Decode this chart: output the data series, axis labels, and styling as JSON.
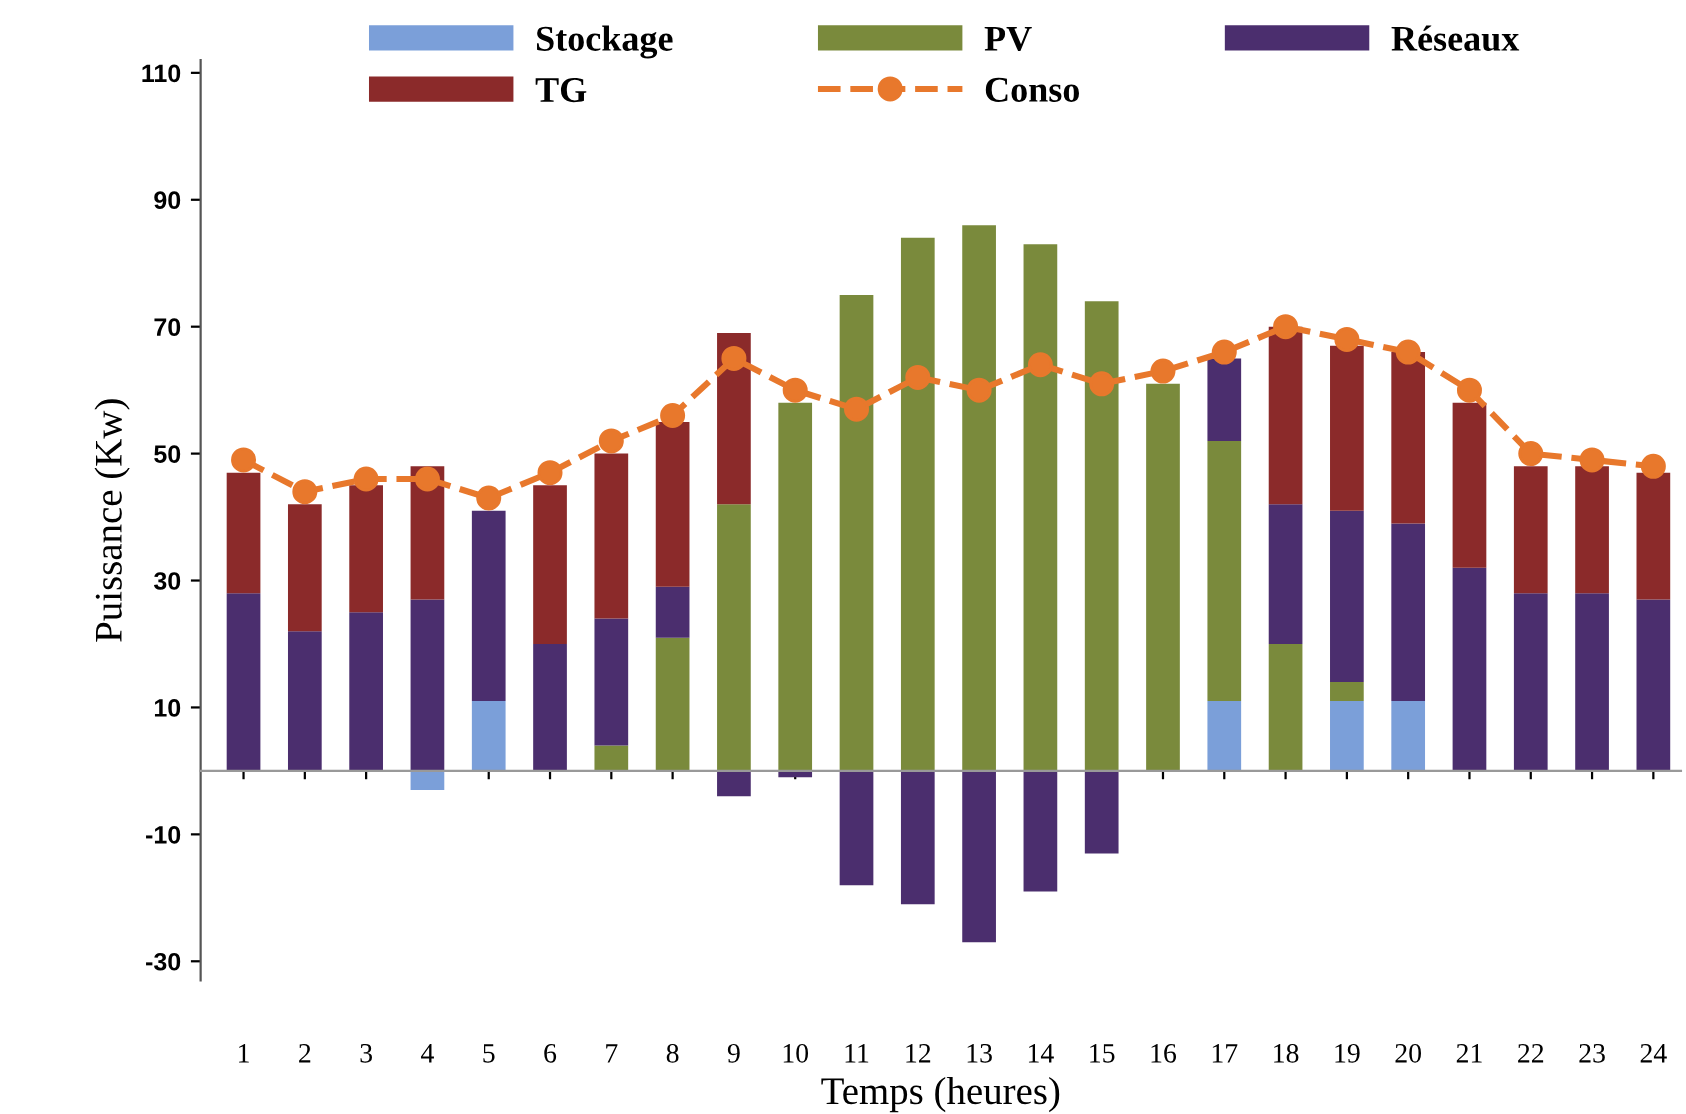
{
  "chart_data": {
    "type": "bar",
    "stacked": true,
    "xlabel": "Temps (heures)",
    "ylabel": "Puissance (Kw)",
    "categories": [
      "1",
      "2",
      "3",
      "4",
      "5",
      "6",
      "7",
      "8",
      "9",
      "10",
      "11",
      "12",
      "13",
      "14",
      "15",
      "16",
      "17",
      "18",
      "19",
      "20",
      "21",
      "22",
      "23",
      "24"
    ],
    "series": [
      {
        "name": "Stockage",
        "color": "#7b9fd9",
        "values": [
          null,
          null,
          null,
          -3,
          11,
          null,
          null,
          null,
          null,
          null,
          null,
          null,
          null,
          null,
          null,
          null,
          11,
          null,
          11,
          11,
          null,
          null,
          null,
          null
        ]
      },
      {
        "name": "PV",
        "color": "#7a8a3c",
        "values": [
          null,
          null,
          null,
          null,
          null,
          null,
          4,
          21,
          42,
          58,
          75,
          84,
          86,
          83,
          74,
          61,
          41,
          20,
          3,
          null,
          null,
          null,
          null,
          null
        ]
      },
      {
        "name": "Réseaux",
        "color": "#4b2e6e",
        "values": [
          28,
          22,
          25,
          27,
          30,
          20,
          20,
          8,
          -4,
          -1,
          -18,
          -21,
          -27,
          -19,
          -13,
          null,
          13,
          22,
          27,
          28,
          32,
          28,
          28,
          27
        ]
      },
      {
        "name": "TG",
        "color": "#8b2a2a",
        "values": [
          19,
          20,
          20,
          21,
          null,
          25,
          26,
          26,
          27,
          null,
          null,
          null,
          null,
          null,
          null,
          null,
          null,
          28,
          26,
          27,
          26,
          20,
          20,
          20
        ]
      },
      {
        "name": "Conso",
        "type": "line",
        "color": "#e8782c",
        "marker": "circle",
        "line_style": "dashed",
        "values": [
          49,
          44,
          46,
          46,
          43,
          47,
          52,
          56,
          65,
          60,
          57,
          62,
          60,
          64,
          61,
          63,
          66,
          70,
          68,
          66,
          60,
          50,
          49,
          48
        ]
      }
    ],
    "ylim": [
      -33,
      112
    ],
    "yticks": [
      110,
      90,
      70,
      50,
      30,
      10,
      -10,
      -30
    ],
    "grid": false,
    "legend": "top"
  }
}
